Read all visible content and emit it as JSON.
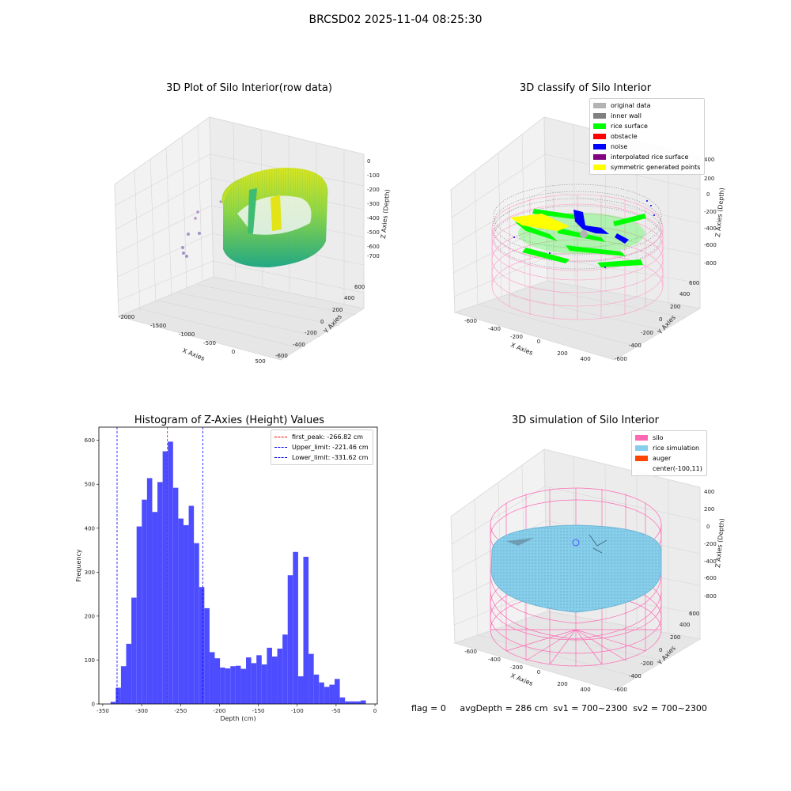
{
  "suptitle": "BRCSD02 2025-11-04 08:25:30",
  "panels": {
    "raw": {
      "title": "3D Plot of Silo Interior(row data)",
      "x_ticks": [
        "-2000",
        "-1500",
        "-1000",
        "-500",
        "0",
        "500"
      ],
      "y_ticks": [
        "-600",
        "-400",
        "-200",
        "0",
        "200",
        "400",
        "600"
      ],
      "z_ticks": [
        "0",
        "-100",
        "-200",
        "-300",
        "-400",
        "-500",
        "-600",
        "-700"
      ],
      "xlabel": "X Axies",
      "ylabel": "Y Axies",
      "zlabel": "Z Axies (Depth)"
    },
    "classify": {
      "title": "3D classify of Silo Interior",
      "x_ticks": [
        "-600",
        "-400",
        "-200",
        "0",
        "200",
        "400"
      ],
      "y_ticks": [
        "-600",
        "-400",
        "-200",
        "0",
        "200",
        "400",
        "600"
      ],
      "z_ticks": [
        "400",
        "200",
        "0",
        "-200",
        "-400",
        "-600",
        "-800"
      ],
      "xlabel": "X Axies",
      "ylabel": "Y Axies",
      "zlabel": "Z Axies (Depth)",
      "legend": [
        {
          "label": "original data",
          "color": "#b3b3b3"
        },
        {
          "label": "inner wall",
          "color": "#808080"
        },
        {
          "label": "rice surface",
          "color": "#00ff00"
        },
        {
          "label": "obstacle",
          "color": "#ff0000"
        },
        {
          "label": "noise",
          "color": "#0000ff"
        },
        {
          "label": "interpolated rice surface",
          "color": "#800080"
        },
        {
          "label": "symmetric generated points",
          "color": "#ffff00"
        }
      ]
    },
    "simulation": {
      "title": "3D simulation of Silo Interior",
      "x_ticks": [
        "-600",
        "-400",
        "-200",
        "0",
        "200",
        "400"
      ],
      "y_ticks": [
        "-600",
        "-400",
        "-200",
        "0",
        "200",
        "400",
        "600"
      ],
      "z_ticks": [
        "400",
        "200",
        "0",
        "-200",
        "-400",
        "-600",
        "-800"
      ],
      "xlabel": "X Axies",
      "ylabel": "Y Axies",
      "zlabel": "Z Axies (Depth)",
      "legend": [
        {
          "label": "silo",
          "color": "#ff69b4"
        },
        {
          "label": "rice simulation",
          "color": "#87ceeb"
        },
        {
          "label": "auger",
          "color": "#ff4500"
        },
        {
          "label": "center(-100,11)",
          "color": ""
        }
      ]
    }
  },
  "footer": {
    "text": "flag = 0     avgDepth = 286 cm  sv1 = 700~2300  sv2 = 700~2300"
  },
  "chart_data": {
    "type": "bar",
    "title": "Histogram of Z-Axies (Height) Values",
    "xlabel": "Depth (cm)",
    "ylabel": "Frequency",
    "xlim": [
      -355,
      3
    ],
    "ylim": [
      0,
      630
    ],
    "x_ticks": [
      -350,
      -300,
      -250,
      -200,
      -150,
      -100,
      -50,
      0
    ],
    "y_ticks": [
      0,
      100,
      200,
      300,
      400,
      500,
      600
    ],
    "bar_color": "#4d4dff",
    "bin_start": -340,
    "bin_width": 6.7,
    "values": [
      5,
      37,
      86,
      137,
      242,
      404,
      465,
      514,
      437,
      505,
      575,
      597,
      492,
      422,
      407,
      451,
      366,
      266,
      218,
      118,
      104,
      83,
      81,
      86,
      87,
      80,
      106,
      93,
      111,
      90,
      128,
      108,
      126,
      158,
      293,
      346,
      63,
      335,
      114,
      67,
      49,
      39,
      44,
      57,
      15,
      6,
      6,
      6,
      8
    ],
    "vlines": [
      {
        "label": "first_peak: -266.82 cm",
        "x": -266.82,
        "color": "#ff0000"
      },
      {
        "label": "Upper_limit: -221.46 cm",
        "x": -221.46,
        "color": "#0000ff"
      },
      {
        "label": "Lower_limit: -331.62 cm",
        "x": -331.62,
        "color": "#0000ff"
      }
    ],
    "legend_position": "upper right"
  }
}
